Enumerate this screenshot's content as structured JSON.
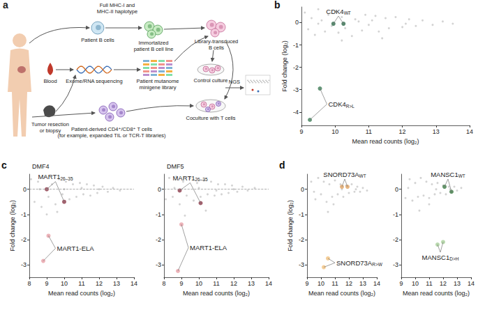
{
  "diagram": {
    "panel": "a",
    "texts": {
      "haplotype": "Full MHC-I and\nMHC-II haplotype",
      "b_cells": "Patient B cells",
      "cell_line": "Immortalized\npatient B cell line",
      "transduced": "Library-transduced\nB cells",
      "blood": "Blood",
      "tumor": "Tumor resection\nor biopsy",
      "sequencing": "Exome/RNA sequencing",
      "library": "Patient mutanome\nminigene library",
      "control": "Control culture",
      "coculture": "Coculture with T cells",
      "ngs": "NGS",
      "t_cells": "Patient-derived CD4⁺/CD8⁺ T cells\n(for example, expanded TIL or TCR-T libraries)"
    }
  },
  "chart_data": [
    {
      "panel": "b",
      "type": "scatter",
      "x_label": "Mean read counts (log₂)",
      "y_label": "Fold change (log₂)",
      "xlim": [
        9,
        14
      ],
      "xticks": [
        9,
        10,
        11,
        12,
        13,
        14
      ],
      "ylim": [
        -4.6,
        0.7
      ],
      "yticks": [
        0,
        -1,
        -2,
        -3,
        -4
      ],
      "series": [
        {
          "color": "#c8c8c8",
          "values": [
            [
              9.1,
              0.45
            ],
            [
              9.2,
              -0.3
            ],
            [
              9.3,
              0.2
            ],
            [
              9.4,
              -0.55
            ],
            [
              9.5,
              0.6
            ],
            [
              9.6,
              0.1
            ],
            [
              9.7,
              -0.4
            ],
            [
              9.8,
              0.35
            ],
            [
              9.9,
              -0.15
            ],
            [
              10.0,
              0.5
            ],
            [
              10.1,
              -0.45
            ],
            [
              10.2,
              0.25
            ],
            [
              10.3,
              -0.25
            ],
            [
              10.4,
              0.4
            ],
            [
              10.5,
              -0.6
            ],
            [
              10.6,
              0.15
            ],
            [
              10.8,
              -0.35
            ],
            [
              10.9,
              0.35
            ],
            [
              11.0,
              -0.1
            ],
            [
              11.2,
              0.3
            ],
            [
              11.3,
              -0.4
            ],
            [
              11.5,
              0.2
            ],
            [
              11.6,
              -0.25
            ],
            [
              11.8,
              0.25
            ],
            [
              12.0,
              -0.2
            ],
            [
              12.2,
              0.15
            ],
            [
              12.4,
              -0.15
            ],
            [
              12.6,
              0.1
            ],
            [
              12.9,
              -0.1
            ],
            [
              13.2,
              0.05
            ],
            [
              13.5,
              -0.05
            ],
            [
              10.7,
              0.05
            ],
            [
              11.1,
              0.1
            ],
            [
              12.1,
              -0.05
            ],
            [
              9.5,
              -0.05
            ],
            [
              10.2,
              -0.8
            ],
            [
              11.4,
              -0.7
            ]
          ]
        },
        {
          "name": "CDK4",
          "subscript": "WT",
          "color": "#2f6b4b",
          "values": [
            [
              9.95,
              -0.05
            ],
            [
              10.25,
              -0.05
            ]
          ]
        },
        {
          "name": "CDK4",
          "subscript": "R>L",
          "color": "#3f7d58",
          "values": [
            [
              9.25,
              -4.35
            ],
            [
              9.55,
              -2.95
            ]
          ]
        }
      ]
    },
    {
      "panel": "c",
      "title": "DMF4",
      "type": "scatter",
      "x_label": "Mean read counts (log₂)",
      "y_label": "Fold change (log₂)",
      "xlim": [
        8,
        14
      ],
      "xticks": [
        8,
        9,
        10,
        11,
        12,
        13,
        14
      ],
      "ylim": [
        -3.5,
        0.6
      ],
      "yticks": [
        0,
        -1,
        -2,
        -3
      ],
      "hline": 0,
      "series": [
        {
          "color": "#c8c8c8",
          "values": [
            [
              8.1,
              0.4
            ],
            [
              8.3,
              -0.5
            ],
            [
              8.5,
              0.3
            ],
            [
              8.7,
              -0.7
            ],
            [
              8.9,
              0.5
            ],
            [
              9.1,
              -0.3
            ],
            [
              9.3,
              0.2
            ],
            [
              9.5,
              -0.6
            ],
            [
              9.7,
              0.4
            ],
            [
              9.9,
              -0.2
            ],
            [
              10.1,
              0.3
            ],
            [
              10.3,
              -0.4
            ],
            [
              10.5,
              0.2
            ],
            [
              10.7,
              -0.3
            ],
            [
              10.9,
              0.25
            ],
            [
              11.1,
              -0.2
            ],
            [
              11.3,
              0.2
            ],
            [
              11.5,
              -0.25
            ],
            [
              11.7,
              0.15
            ],
            [
              11.9,
              -0.15
            ],
            [
              12.2,
              0.1
            ],
            [
              12.5,
              -0.1
            ],
            [
              12.8,
              0.05
            ],
            [
              13.2,
              -0.05
            ],
            [
              9.0,
              -1.0
            ],
            [
              10.0,
              0.0
            ],
            [
              11.0,
              0.05
            ],
            [
              8.6,
              0.0
            ],
            [
              12.0,
              0.0
            ],
            [
              9.6,
              -0.9
            ]
          ]
        },
        {
          "name": "MART1",
          "subscript": "26–35",
          "color": "#8b3a4a",
          "values": [
            [
              9.0,
              0.0
            ],
            [
              10.0,
              -0.5
            ]
          ]
        },
        {
          "name": "MART1-ELA",
          "color": "#e8a0a8",
          "values": [
            [
              9.1,
              -1.85
            ],
            [
              8.8,
              -2.85
            ]
          ]
        }
      ]
    },
    {
      "title": "DMF5",
      "type": "scatter",
      "x_label": "Mean read counts (log₂)",
      "xlim": [
        8,
        14
      ],
      "xticks": [
        8,
        9,
        10,
        11,
        12,
        13,
        14
      ],
      "ylim": [
        -3.5,
        0.6
      ],
      "yticks": [
        0,
        -1,
        -2,
        -3
      ],
      "hline": 0,
      "series": [
        {
          "color": "#c8c8c8",
          "values": [
            [
              8.1,
              -0.4
            ],
            [
              8.3,
              0.45
            ],
            [
              8.5,
              -0.3
            ],
            [
              8.7,
              0.5
            ],
            [
              8.9,
              -0.6
            ],
            [
              9.1,
              0.3
            ],
            [
              9.3,
              -0.25
            ],
            [
              9.5,
              0.45
            ],
            [
              9.7,
              -0.45
            ],
            [
              9.9,
              0.25
            ],
            [
              10.1,
              -0.3
            ],
            [
              10.3,
              0.35
            ],
            [
              10.5,
              -0.2
            ],
            [
              10.7,
              0.3
            ],
            [
              10.9,
              -0.25
            ],
            [
              11.1,
              0.2
            ],
            [
              11.3,
              -0.2
            ],
            [
              11.5,
              0.2
            ],
            [
              11.7,
              -0.15
            ],
            [
              11.9,
              0.15
            ],
            [
              12.2,
              -0.1
            ],
            [
              12.5,
              0.1
            ],
            [
              12.8,
              -0.05
            ],
            [
              13.2,
              0.05
            ],
            [
              9.2,
              -1.05
            ],
            [
              10.0,
              0.05
            ],
            [
              11.0,
              -0.05
            ],
            [
              8.6,
              0.05
            ],
            [
              12.0,
              0.0
            ],
            [
              10.4,
              -0.85
            ]
          ]
        },
        {
          "name": "MART1",
          "subscript": "26–35",
          "color": "#8b3a4a",
          "values": [
            [
              8.9,
              -0.05
            ],
            [
              10.1,
              -0.55
            ]
          ]
        },
        {
          "name": "MART1-ELA",
          "color": "#e8a0a8",
          "values": [
            [
              9.0,
              -1.4
            ],
            [
              8.8,
              -3.25
            ]
          ]
        }
      ]
    },
    {
      "panel": "d",
      "type": "scatter",
      "x_label": "Mean read counts (log₂)",
      "y_label": "Fold change (log₂)",
      "xlim": [
        9,
        14
      ],
      "xticks": [
        9,
        10,
        11,
        12,
        13,
        14
      ],
      "ylim": [
        -3.5,
        0.6
      ],
      "yticks": [
        0,
        -1,
        -2,
        -3
      ],
      "series": [
        {
          "color": "#c8c8c8",
          "values": [
            [
              9.3,
              0.3
            ],
            [
              9.6,
              -0.4
            ],
            [
              9.8,
              0.45
            ],
            [
              10.0,
              -0.2
            ],
            [
              10.2,
              0.3
            ],
            [
              10.4,
              -0.5
            ],
            [
              10.6,
              0.2
            ],
            [
              10.8,
              -0.3
            ],
            [
              11.0,
              0.35
            ],
            [
              11.2,
              -0.2
            ],
            [
              11.4,
              0.2
            ],
            [
              11.6,
              -0.3
            ],
            [
              11.8,
              0.15
            ],
            [
              12.0,
              -0.15
            ],
            [
              12.2,
              0.2
            ],
            [
              12.4,
              -0.1
            ],
            [
              12.6,
              0.1
            ],
            [
              12.8,
              -0.1
            ],
            [
              13.0,
              0.05
            ],
            [
              13.3,
              -0.05
            ],
            [
              10.5,
              -0.9
            ],
            [
              11.5,
              0.0
            ],
            [
              12.5,
              0.0
            ],
            [
              9.5,
              -0.1
            ],
            [
              10.9,
              -0.6
            ]
          ]
        },
        {
          "name": "SNORD73A",
          "subscript": "WT",
          "color": "#e0a262",
          "values": [
            [
              11.5,
              0.1
            ],
            [
              11.9,
              0.1
            ]
          ]
        },
        {
          "name": "SNORD73A",
          "subscript": "R>W",
          "color": "#f3c27e",
          "values": [
            [
              10.2,
              -3.1
            ],
            [
              10.5,
              -2.75
            ]
          ]
        }
      ]
    },
    {
      "type": "scatter",
      "x_label": "Mean read counts (log₂)",
      "xlim": [
        9,
        14
      ],
      "xticks": [
        9,
        10,
        11,
        12,
        13,
        14
      ],
      "ylim": [
        -3.5,
        0.6
      ],
      "yticks": [
        0,
        -1,
        -2,
        -3
      ],
      "series": [
        {
          "color": "#c8c8c8",
          "values": [
            [
              9.3,
              -0.35
            ],
            [
              9.6,
              0.4
            ],
            [
              9.8,
              -0.45
            ],
            [
              10.0,
              0.25
            ],
            [
              10.2,
              -0.3
            ],
            [
              10.4,
              0.45
            ],
            [
              10.6,
              -0.25
            ],
            [
              10.8,
              0.3
            ],
            [
              11.0,
              -0.35
            ],
            [
              11.2,
              0.2
            ],
            [
              11.4,
              -0.2
            ],
            [
              11.6,
              0.25
            ],
            [
              11.8,
              -0.15
            ],
            [
              12.0,
              0.15
            ],
            [
              12.2,
              -0.2
            ],
            [
              12.4,
              0.1
            ],
            [
              12.6,
              -0.1
            ],
            [
              12.8,
              0.1
            ],
            [
              13.0,
              -0.05
            ],
            [
              13.3,
              0.05
            ],
            [
              10.3,
              -0.85
            ],
            [
              11.5,
              0.0
            ],
            [
              12.5,
              0.0
            ],
            [
              9.5,
              0.05
            ],
            [
              11.0,
              -0.6
            ]
          ]
        },
        {
          "name": "MANSC1",
          "subscript": "WT",
          "color": "#3d7a45",
          "values": [
            [
              12.1,
              0.1
            ],
            [
              12.6,
              -0.1
            ]
          ]
        },
        {
          "name": "MANSC1",
          "subscript": "D>H",
          "color": "#a8cf9a",
          "values": [
            [
              11.6,
              -2.2
            ],
            [
              12.0,
              -2.1
            ]
          ]
        }
      ]
    }
  ]
}
